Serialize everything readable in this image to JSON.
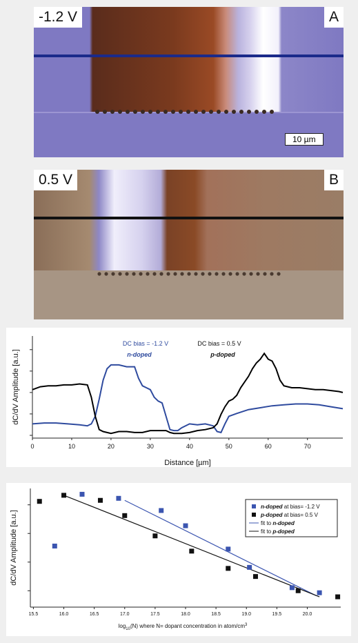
{
  "image_a": {
    "bias_label": "-1.2 V",
    "letter": "A",
    "scale_label": "10 µm"
  },
  "image_b": {
    "bias_label": "0.5 V",
    "letter": "B"
  },
  "colors": {
    "n_doped": "#2e4a9e",
    "p_doped": "#000000",
    "line_a": "#1a2a8a",
    "line_b": "#111111"
  },
  "chart_data": [
    {
      "type": "line",
      "xlabel": "Distance [µm]",
      "ylabel": "dC/dV Amplitude [a.u.]",
      "xlim": [
        0,
        79
      ],
      "xticks": [
        "0",
        "10",
        "20",
        "30",
        "40",
        "50",
        "60",
        "70"
      ],
      "annotations": {
        "n_bias": "DC bias = -1.2 V",
        "n_type": "n-doped",
        "p_bias": "DC bias = 0.5 V",
        "p_type": "p-doped"
      },
      "series": [
        {
          "name": "n-doped",
          "x": [
            0,
            3,
            6,
            9,
            12,
            14,
            15,
            16,
            17,
            18,
            19,
            20,
            22,
            24,
            26,
            27,
            28,
            29,
            30,
            31,
            32,
            33,
            34,
            35,
            36,
            37,
            38,
            40,
            42,
            44,
            46,
            47,
            48,
            49,
            50,
            52,
            55,
            58,
            61,
            64,
            67,
            70,
            73,
            76,
            79
          ],
          "y": [
            0.12,
            0.13,
            0.13,
            0.12,
            0.11,
            0.1,
            0.12,
            0.2,
            0.38,
            0.58,
            0.7,
            0.74,
            0.74,
            0.72,
            0.72,
            0.6,
            0.52,
            0.5,
            0.48,
            0.4,
            0.36,
            0.34,
            0.2,
            0.06,
            0.05,
            0.05,
            0.08,
            0.12,
            0.11,
            0.12,
            0.1,
            0.04,
            0.03,
            0.12,
            0.2,
            0.23,
            0.27,
            0.29,
            0.31,
            0.32,
            0.33,
            0.33,
            0.32,
            0.3,
            0.28
          ]
        },
        {
          "name": "p-doped",
          "x": [
            0,
            2,
            4,
            6,
            8,
            10,
            12,
            14,
            15,
            16,
            17,
            18,
            19,
            20,
            22,
            24,
            26,
            28,
            30,
            32,
            34,
            35,
            36,
            38,
            40,
            42,
            44,
            46,
            47,
            48,
            49,
            50,
            51,
            52,
            53,
            54,
            55,
            56,
            57,
            58,
            59,
            60,
            61,
            62,
            63,
            64,
            66,
            68,
            70,
            72,
            74,
            76,
            78,
            79
          ],
          "y": [
            0.48,
            0.51,
            0.52,
            0.52,
            0.53,
            0.53,
            0.54,
            0.53,
            0.4,
            0.2,
            0.06,
            0.04,
            0.03,
            0.02,
            0.04,
            0.04,
            0.03,
            0.03,
            0.05,
            0.05,
            0.05,
            0.03,
            0.02,
            0.02,
            0.03,
            0.05,
            0.06,
            0.08,
            0.12,
            0.22,
            0.3,
            0.36,
            0.38,
            0.42,
            0.5,
            0.56,
            0.62,
            0.7,
            0.76,
            0.8,
            0.86,
            0.8,
            0.78,
            0.7,
            0.58,
            0.52,
            0.5,
            0.5,
            0.49,
            0.48,
            0.48,
            0.47,
            0.46,
            0.45
          ]
        }
      ]
    },
    {
      "type": "scatter",
      "xlabel": "log10(N) where N= dopant concentration in atom/cm3",
      "ylabel": "dC/dV Amplitude [a.u.]",
      "xlim": [
        15.45,
        20.55
      ],
      "xticks": [
        "15.5",
        "16.0",
        "16.5",
        "17.0",
        "17.5",
        "18.0",
        "18.5",
        "19.0",
        "19.5",
        "20.0"
      ],
      "legend_position": "top-right",
      "series": [
        {
          "name": "n-doped",
          "legend_text": "at bias= -1.2 V",
          "marker": "square",
          "x": [
            15.85,
            16.3,
            16.9,
            17.6,
            18.0,
            18.7,
            19.05,
            19.75,
            20.2
          ],
          "y": [
            0.44,
            0.95,
            0.91,
            0.79,
            0.64,
            0.41,
            0.23,
            0.03,
            -0.02
          ]
        },
        {
          "name": "p-doped",
          "legend_text": "at bias= 0.5 V",
          "marker": "square",
          "x": [
            15.6,
            16.0,
            16.6,
            17.0,
            17.5,
            18.1,
            18.7,
            19.15,
            19.85,
            20.5
          ],
          "y": [
            0.88,
            0.94,
            0.89,
            0.74,
            0.54,
            0.39,
            0.22,
            0.14,
            0.0,
            -0.06
          ]
        },
        {
          "name": "fit to n-doped",
          "type": "line",
          "x": [
            17.0,
            20.15
          ],
          "y": [
            0.89,
            -0.05
          ]
        },
        {
          "name": "fit to p-doped",
          "type": "line",
          "x": [
            16.0,
            20.2
          ],
          "y": [
            0.94,
            -0.06
          ]
        }
      ]
    }
  ]
}
